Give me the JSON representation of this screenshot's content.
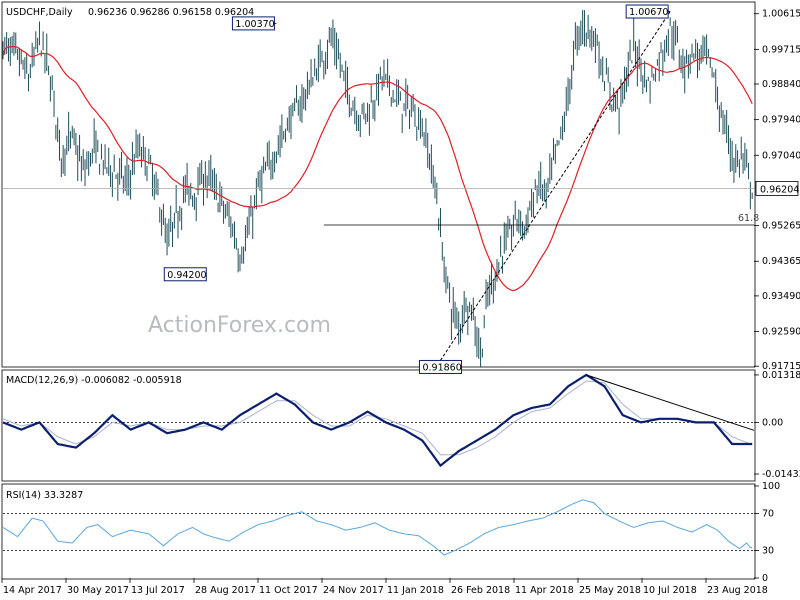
{
  "header": {
    "symbol": "USDCHF,Daily",
    "ohlc": "0.96236 0.96286 0.96158 0.96204"
  },
  "watermark": "ActionForex.com",
  "colors": {
    "bars": "#1f4e5a",
    "ma": "#e01e25",
    "macd": "#0b1f6e",
    "signal": "#aab2d0",
    "rsi": "#5aa7dd",
    "label_border": "#0b1f6e",
    "current_price_bg": "#ffffff"
  },
  "chart_data": [
    {
      "type": "bar",
      "title": "USDCHF,Daily",
      "ylim": [
        0.9172,
        1.0086
      ],
      "y_ticks": [
        "1.00615",
        "0.99715",
        "0.98840",
        "0.97940",
        "0.97040",
        "0.96204",
        "0.95265",
        "0.94365",
        "0.93490",
        "0.92590",
        "0.91715"
      ],
      "x_ticks": [
        "14 Apr 2017",
        "30 May 2017",
        "13 Jul 2017",
        "28 Aug 2017",
        "11 Oct 2017",
        "24 Nov 2017",
        "11 Jan 2018",
        "26 Feb 2018",
        "11 Apr 2018",
        "25 May 2018",
        "10 Jul 2018",
        "23 Aug 2018"
      ],
      "current_price": "0.96204",
      "price_path": [
        [
          0,
          0.998
        ],
        [
          8,
          0.995
        ],
        [
          14,
          0.99
        ],
        [
          20,
          1.0
        ],
        [
          26,
          0.99
        ],
        [
          32,
          0.97
        ],
        [
          38,
          0.975
        ],
        [
          44,
          0.966
        ],
        [
          50,
          0.972
        ],
        [
          56,
          0.968
        ],
        [
          62,
          0.966
        ],
        [
          68,
          0.963
        ],
        [
          74,
          0.972
        ],
        [
          80,
          0.968
        ],
        [
          86,
          0.958
        ],
        [
          90,
          0.948
        ],
        [
          96,
          0.956
        ],
        [
          100,
          0.962
        ],
        [
          104,
          0.96
        ],
        [
          110,
          0.965
        ],
        [
          114,
          0.964
        ],
        [
          120,
          0.958
        ],
        [
          126,
          0.952
        ],
        [
          130,
          0.945
        ],
        [
          134,
          0.95
        ],
        [
          140,
          0.962
        ],
        [
          146,
          0.968
        ],
        [
          152,
          0.974
        ],
        [
          158,
          0.98
        ],
        [
          164,
          0.984
        ],
        [
          170,
          0.99
        ],
        [
          176,
          0.996
        ],
        [
          180,
          1.0
        ],
        [
          184,
          0.995
        ],
        [
          190,
          0.985
        ],
        [
          196,
          0.98
        ],
        [
          202,
          0.983
        ],
        [
          208,
          0.99
        ],
        [
          212,
          0.988
        ],
        [
          218,
          0.983
        ],
        [
          224,
          0.982
        ],
        [
          230,
          0.978
        ],
        [
          234,
          0.97
        ],
        [
          238,
          0.96
        ],
        [
          242,
          0.942
        ],
        [
          246,
          0.932
        ],
        [
          250,
          0.927
        ],
        [
          254,
          0.934
        ],
        [
          258,
          0.93
        ],
        [
          262,
          0.92
        ],
        [
          266,
          0.935
        ],
        [
          270,
          0.94
        ],
        [
          274,
          0.947
        ],
        [
          278,
          0.95
        ],
        [
          282,
          0.955
        ],
        [
          286,
          0.952
        ],
        [
          290,
          0.958
        ],
        [
          294,
          0.963
        ],
        [
          298,
          0.96
        ],
        [
          302,
          0.968
        ],
        [
          306,
          0.975
        ],
        [
          310,
          0.985
        ],
        [
          314,
          0.998
        ],
        [
          318,
          1.003
        ],
        [
          322,
          1.002
        ],
        [
          326,
          0.998
        ],
        [
          330,
          0.99
        ],
        [
          334,
          0.985
        ],
        [
          338,
          0.983
        ],
        [
          342,
          0.99
        ],
        [
          346,
          0.998
        ],
        [
          350,
          0.993
        ],
        [
          354,
          0.988
        ],
        [
          358,
          0.992
        ],
        [
          362,
          0.997
        ],
        [
          366,
          1.002
        ],
        [
          370,
          0.998
        ],
        [
          374,
          0.993
        ],
        [
          378,
          0.997
        ],
        [
          382,
          0.995
        ],
        [
          386,
          0.996
        ],
        [
          390,
          0.99
        ],
        [
          394,
          0.98
        ],
        [
          398,
          0.974
        ],
        [
          402,
          0.968
        ],
        [
          406,
          0.97
        ],
        [
          409,
          0.964
        ],
        [
          410,
          0.962
        ]
      ],
      "annotations": [
        {
          "label": "1.00370",
          "x_idx": 150,
          "value": 1.0037
        },
        {
          "label": "0.94200",
          "x_idx": 100,
          "value": 0.942
        },
        {
          "label": "0.91860",
          "x_idx": 240,
          "value": 0.9186
        },
        {
          "label": "1.00670",
          "x_idx": 366,
          "value": 1.0067
        }
      ],
      "fib_level": {
        "label": "61.8",
        "value": 0.9528
      },
      "trendline": {
        "from": [
          240,
          0.9186
        ],
        "to": [
          366,
          1.0067
        ],
        "style": "dashed"
      }
    },
    {
      "type": "line",
      "title": "MACD(12,26,9) -0.006082 -0.005918",
      "ylim": [
        -0.016,
        0.014
      ],
      "y_ticks": [
        "0.013184",
        "0.00",
        "-0.014339"
      ],
      "zero_line": "dashed",
      "series": [
        {
          "values_path": [
            [
              0,
              0.0
            ],
            [
              10,
              -0.002
            ],
            [
              20,
              0.0
            ],
            [
              30,
              -0.006
            ],
            [
              40,
              -0.007
            ],
            [
              50,
              -0.003
            ],
            [
              60,
              0.002
            ],
            [
              70,
              -0.002
            ],
            [
              80,
              0.0
            ],
            [
              90,
              -0.003
            ],
            [
              100,
              -0.002
            ],
            [
              110,
              0.0
            ],
            [
              120,
              -0.002
            ],
            [
              130,
              0.002
            ],
            [
              140,
              0.005
            ],
            [
              150,
              0.008
            ],
            [
              160,
              0.005
            ],
            [
              170,
              0.0
            ],
            [
              180,
              -0.002
            ],
            [
              190,
              0.0
            ],
            [
              200,
              0.003
            ],
            [
              210,
              0.0
            ],
            [
              220,
              -0.002
            ],
            [
              230,
              -0.005
            ],
            [
              240,
              -0.012
            ],
            [
              250,
              -0.008
            ],
            [
              260,
              -0.005
            ],
            [
              270,
              -0.002
            ],
            [
              280,
              0.002
            ],
            [
              290,
              0.004
            ],
            [
              300,
              0.005
            ],
            [
              310,
              0.01
            ],
            [
              320,
              0.0132
            ],
            [
              330,
              0.01
            ],
            [
              340,
              0.002
            ],
            [
              350,
              0.0
            ],
            [
              360,
              0.001
            ],
            [
              370,
              0.001
            ],
            [
              380,
              0.0
            ],
            [
              390,
              0.0
            ],
            [
              400,
              -0.006
            ],
            [
              410,
              -0.006
            ]
          ]
        },
        {
          "values_path": [
            [
              0,
              0.001
            ],
            [
              10,
              -0.001
            ],
            [
              20,
              0.0
            ],
            [
              30,
              -0.004
            ],
            [
              40,
              -0.006
            ],
            [
              50,
              -0.004
            ],
            [
              60,
              0.0
            ],
            [
              70,
              -0.001
            ],
            [
              80,
              0.0
            ],
            [
              90,
              -0.002
            ],
            [
              100,
              -0.002
            ],
            [
              110,
              -0.001
            ],
            [
              120,
              -0.001
            ],
            [
              130,
              0.0
            ],
            [
              140,
              0.003
            ],
            [
              150,
              0.006
            ],
            [
              160,
              0.006
            ],
            [
              170,
              0.002
            ],
            [
              180,
              -0.001
            ],
            [
              190,
              -0.001
            ],
            [
              200,
              0.002
            ],
            [
              210,
              0.001
            ],
            [
              220,
              -0.001
            ],
            [
              230,
              -0.003
            ],
            [
              240,
              -0.009
            ],
            [
              250,
              -0.009
            ],
            [
              260,
              -0.007
            ],
            [
              270,
              -0.004
            ],
            [
              280,
              0.0
            ],
            [
              290,
              0.003
            ],
            [
              300,
              0.004
            ],
            [
              310,
              0.008
            ],
            [
              320,
              0.0115
            ],
            [
              330,
              0.011
            ],
            [
              340,
              0.005
            ],
            [
              350,
              0.001
            ],
            [
              360,
              0.001
            ],
            [
              370,
              0.001
            ],
            [
              380,
              0.0
            ],
            [
              390,
              0.0
            ],
            [
              400,
              -0.004
            ],
            [
              410,
              -0.006
            ]
          ]
        }
      ],
      "trendline": {
        "from": [
          320,
          0.0132
        ],
        "to": [
          412,
          -0.0022
        ]
      }
    },
    {
      "type": "line",
      "title": "RSI(14) 33.3287",
      "ylim": [
        0,
        100
      ],
      "y_ticks": [
        "100",
        "70",
        "30",
        "0"
      ],
      "levels": [
        70,
        30
      ],
      "series": [
        {
          "name": "RSI(14)",
          "values_path": [
            [
              0,
              55
            ],
            [
              8,
              45
            ],
            [
              16,
              65
            ],
            [
              22,
              62
            ],
            [
              30,
              40
            ],
            [
              38,
              38
            ],
            [
              46,
              55
            ],
            [
              52,
              58
            ],
            [
              60,
              45
            ],
            [
              70,
              52
            ],
            [
              80,
              48
            ],
            [
              88,
              35
            ],
            [
              96,
              48
            ],
            [
              104,
              55
            ],
            [
              110,
              48
            ],
            [
              116,
              44
            ],
            [
              124,
              40
            ],
            [
              132,
              50
            ],
            [
              140,
              58
            ],
            [
              148,
              62
            ],
            [
              156,
              68
            ],
            [
              164,
              72
            ],
            [
              172,
              62
            ],
            [
              180,
              58
            ],
            [
              188,
              52
            ],
            [
              196,
              55
            ],
            [
              204,
              60
            ],
            [
              212,
              52
            ],
            [
              220,
              48
            ],
            [
              228,
              46
            ],
            [
              236,
              35
            ],
            [
              242,
              25
            ],
            [
              248,
              30
            ],
            [
              256,
              38
            ],
            [
              264,
              48
            ],
            [
              272,
              55
            ],
            [
              280,
              58
            ],
            [
              288,
              62
            ],
            [
              296,
              65
            ],
            [
              304,
              72
            ],
            [
              312,
              80
            ],
            [
              318,
              85
            ],
            [
              324,
              82
            ],
            [
              330,
              70
            ],
            [
              338,
              62
            ],
            [
              346,
              55
            ],
            [
              354,
              60
            ],
            [
              362,
              62
            ],
            [
              370,
              55
            ],
            [
              378,
              50
            ],
            [
              386,
              58
            ],
            [
              392,
              52
            ],
            [
              398,
              40
            ],
            [
              404,
              32
            ],
            [
              408,
              38
            ],
            [
              410,
              33
            ]
          ]
        }
      ]
    }
  ]
}
